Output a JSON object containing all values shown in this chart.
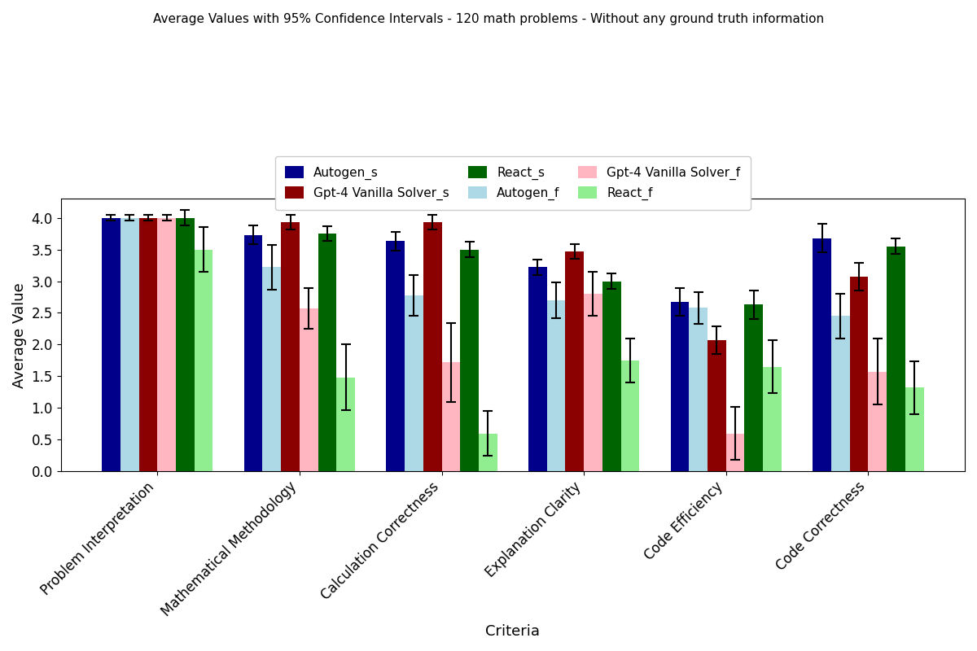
{
  "title": "Average Values with 95% Confidence Intervals - 120 math problems - Without any ground truth information",
  "xlabel": "Criteria",
  "ylabel": "Average Value",
  "categories": [
    "Problem Interpretation",
    "Mathematical Methodology",
    "Calculation Correctness",
    "Explanation Clarity",
    "Code Efficiency",
    "Code Correctness"
  ],
  "series": [
    {
      "label": "Autogen_s",
      "color": "#00008B",
      "values": [
        4.0,
        3.73,
        3.63,
        3.22,
        2.67,
        3.68
      ],
      "errors": [
        0.04,
        0.15,
        0.15,
        0.12,
        0.22,
        0.22
      ]
    },
    {
      "label": "Autogen_f",
      "color": "#ADD8E6",
      "values": [
        4.0,
        3.22,
        2.78,
        2.7,
        2.58,
        2.45
      ],
      "errors": [
        0.04,
        0.35,
        0.32,
        0.28,
        0.25,
        0.35
      ]
    },
    {
      "label": "Gpt-4 Vanilla Solver_s",
      "color": "#8B0000",
      "values": [
        4.0,
        3.93,
        3.93,
        3.47,
        2.07,
        3.07
      ],
      "errors": [
        0.04,
        0.12,
        0.12,
        0.12,
        0.22,
        0.22
      ]
    },
    {
      "label": "Gpt-4 Vanilla Solver_f",
      "color": "#FFB6C1",
      "values": [
        4.0,
        2.57,
        1.72,
        2.8,
        0.6,
        1.57
      ],
      "errors": [
        0.04,
        0.32,
        0.62,
        0.35,
        0.42,
        0.52
      ]
    },
    {
      "label": "React_s",
      "color": "#006400",
      "values": [
        4.0,
        3.75,
        3.5,
        3.0,
        2.63,
        3.55
      ],
      "errors": [
        0.12,
        0.12,
        0.12,
        0.12,
        0.22,
        0.12
      ]
    },
    {
      "label": "React_f",
      "color": "#90EE90",
      "values": [
        3.5,
        1.48,
        0.6,
        1.75,
        1.65,
        1.32
      ],
      "errors": [
        0.35,
        0.52,
        0.35,
        0.35,
        0.42,
        0.42
      ]
    }
  ],
  "ylim": [
    0.0,
    4.3
  ],
  "figsize": [
    12.0,
    8.0
  ],
  "dpi": 100,
  "legend_fontsize": 11,
  "title_fontsize": 11,
  "label_fontsize": 13,
  "tick_fontsize": 12,
  "bar_width": 0.13,
  "background_color": "#ffffff"
}
